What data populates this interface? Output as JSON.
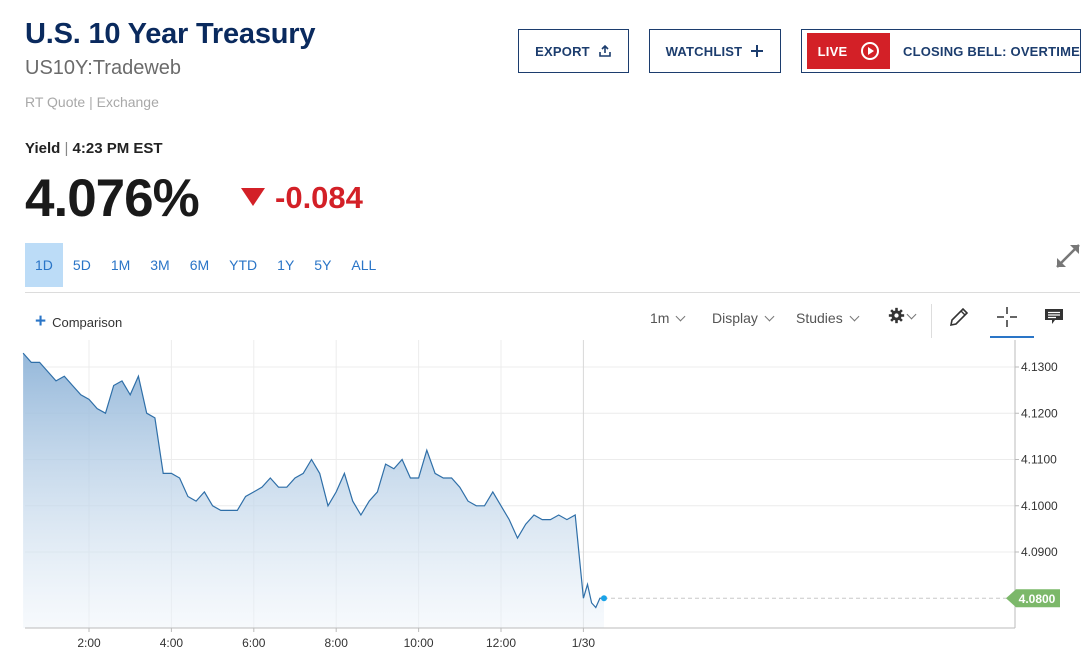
{
  "header": {
    "title": "U.S. 10 Year Treasury",
    "symbol": "US10Y:Tradeweb",
    "quote_source": "RT Quote | Exchange"
  },
  "actions": {
    "export_label": "EXPORT",
    "watchlist_label": "WATCHLIST",
    "live_label": "LIVE",
    "live_show_label": "CLOSING BELL: OVERTIME"
  },
  "quote": {
    "yield_label": "Yield",
    "time": "4:23 PM EST",
    "value": "4.076%",
    "change": "-0.084",
    "direction": "down",
    "change_color": "#d32027"
  },
  "ranges": {
    "items": [
      "1D",
      "5D",
      "1M",
      "3M",
      "6M",
      "YTD",
      "1Y",
      "5Y",
      "ALL"
    ],
    "selected": "1D"
  },
  "toolbar": {
    "comparison_label": "Comparison",
    "interval_label": "1m",
    "display_label": "Display",
    "studies_label": "Studies",
    "icons": [
      "gear-icon",
      "pencil-icon",
      "crosshair-icon",
      "comment-icon"
    ]
  },
  "chart_data": {
    "type": "area",
    "xlabel": "",
    "ylabel": "",
    "x_ticks": [
      "2:00",
      "4:00",
      "6:00",
      "8:00",
      "10:00",
      "12:00",
      "1/30"
    ],
    "y_ticks": [
      "4.1300",
      "4.1200",
      "4.1100",
      "4.1000",
      "4.0900"
    ],
    "ylim": [
      4.0765,
      4.134
    ],
    "last_price_label": "4.0800",
    "last_price": 4.08,
    "line_color": "#2f6fa8",
    "last_label_color": "#7cb86a",
    "grid": true,
    "series": [
      {
        "x_hours": [
          0.4,
          0.6,
          0.8,
          1.0,
          1.2,
          1.4,
          1.6,
          1.8,
          2.0,
          2.2,
          2.4,
          2.6,
          2.8,
          3.0,
          3.2,
          3.4,
          3.6,
          3.8,
          4.0,
          4.2,
          4.4,
          4.6,
          4.8,
          5.0,
          5.2,
          5.4,
          5.6,
          5.8,
          6.0,
          6.2,
          6.4,
          6.6,
          6.8,
          7.0,
          7.2,
          7.4,
          7.6,
          7.8,
          8.0,
          8.2,
          8.4,
          8.6,
          8.8,
          9.0,
          9.2,
          9.4,
          9.6,
          9.8,
          10.0,
          10.2,
          10.4,
          10.6,
          10.8,
          11.0,
          11.2,
          11.4,
          11.6,
          11.8,
          12.0,
          12.2,
          12.4,
          12.6,
          12.8,
          13.0,
          13.2,
          13.4,
          13.6,
          13.8,
          13.9,
          14.0,
          14.1,
          14.2,
          14.3,
          14.4,
          14.5
        ],
        "values": [
          4.133,
          4.131,
          4.131,
          4.129,
          4.127,
          4.128,
          4.126,
          4.124,
          4.123,
          4.121,
          4.12,
          4.126,
          4.127,
          4.124,
          4.128,
          4.12,
          4.119,
          4.107,
          4.107,
          4.106,
          4.102,
          4.101,
          4.103,
          4.1,
          4.099,
          4.099,
          4.099,
          4.102,
          4.103,
          4.104,
          4.106,
          4.104,
          4.104,
          4.106,
          4.107,
          4.11,
          4.107,
          4.1,
          4.103,
          4.107,
          4.101,
          4.098,
          4.101,
          4.103,
          4.109,
          4.108,
          4.11,
          4.106,
          4.106,
          4.112,
          4.107,
          4.106,
          4.106,
          4.104,
          4.101,
          4.1,
          4.1,
          4.103,
          4.1,
          4.097,
          4.093,
          4.096,
          4.098,
          4.097,
          4.097,
          4.098,
          4.097,
          4.098,
          4.089,
          4.08,
          4.083,
          4.079,
          4.078,
          4.08,
          4.08
        ]
      }
    ]
  }
}
